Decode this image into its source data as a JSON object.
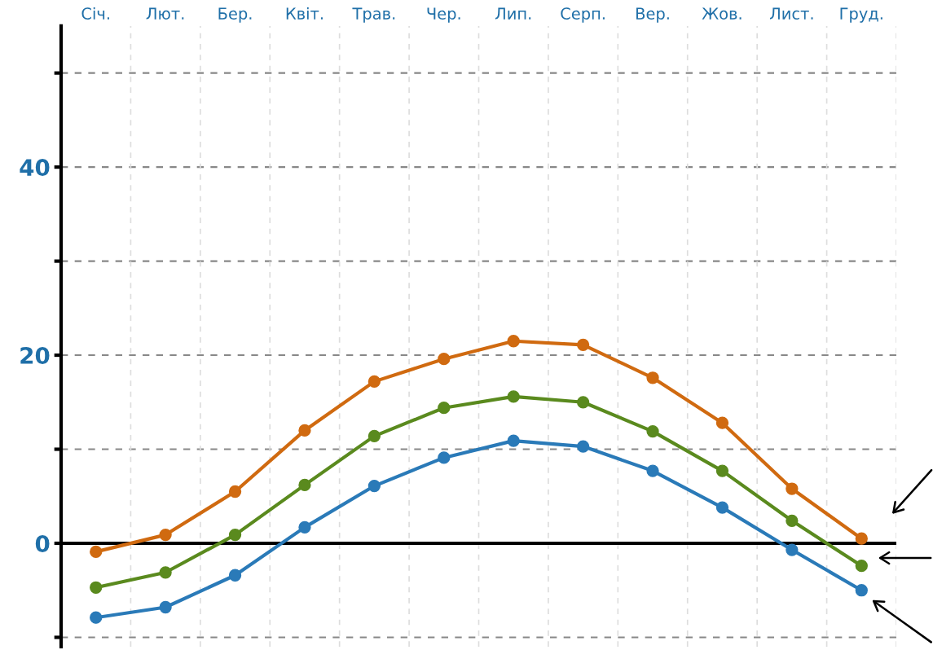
{
  "chart_data": {
    "type": "line",
    "categories": [
      "Січ.",
      "Лют.",
      "Бер.",
      "Квіт.",
      "Трав.",
      "Чер.",
      "Лип.",
      "Серп.",
      "Вер.",
      "Жов.",
      "Лист.",
      "Груд."
    ],
    "series": [
      {
        "color": "#d06a10",
        "values": [
          -0.9,
          0.9,
          5.5,
          12,
          17.2,
          19.6,
          21.5,
          21.1,
          17.6,
          12.8,
          5.8,
          0.5
        ]
      },
      {
        "color": "#5a8a1e",
        "values": [
          -4.7,
          -3.1,
          0.9,
          6.2,
          11.4,
          14.4,
          15.6,
          15.0,
          11.9,
          7.7,
          2.4,
          -2.4
        ]
      },
      {
        "color": "#2a7ab8",
        "values": [
          -7.9,
          -6.8,
          -3.4,
          1.7,
          6.1,
          9.1,
          10.9,
          10.3,
          7.7,
          3.8,
          -0.7,
          -5.0
        ]
      }
    ],
    "ylim": [
      -11,
      55
    ],
    "yticks": [
      {
        "value": -10,
        "label": null
      },
      0,
      {
        "value": 10,
        "label": null
      },
      20,
      {
        "value": 30,
        "label": null
      },
      40,
      {
        "value": 50,
        "label": null
      }
    ],
    "ref_lines": [
      {
        "axis": "y",
        "value": 0,
        "color": "#000000"
      }
    ],
    "grid": true,
    "marker": "circle",
    "line_style": "solid"
  }
}
